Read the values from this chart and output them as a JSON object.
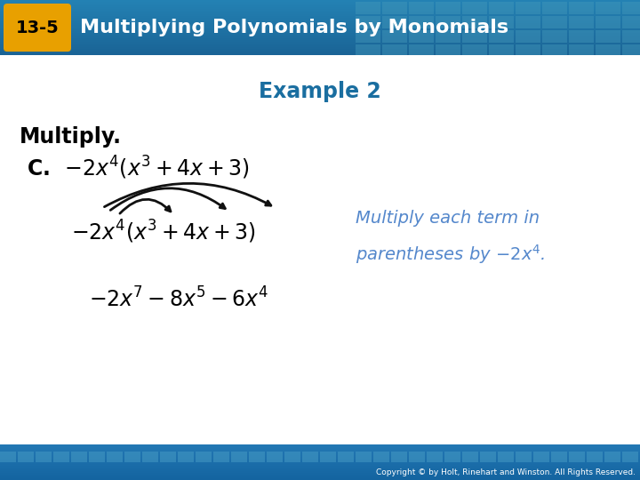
{
  "header_bg_color_dark": "#1A6A9A",
  "header_bg_color_light": "#2288BB",
  "header_text": "Multiplying Polynomials by Monomials",
  "header_badge_text": "13-5",
  "header_badge_bg": "#E8A000",
  "footer_bg_color": "#1A7AAF",
  "footer_text": "Copyright © by Holt, Rinehart and Winston. All Rights Reserved.",
  "body_bg_color": "#FFFFFF",
  "example_title": "Example 2",
  "example_title_color": "#1A6EA0",
  "multiply_label": "Multiply.",
  "note_color": "#5588CC",
  "arrow_color": "#111111",
  "grid_color": "#5599CC"
}
